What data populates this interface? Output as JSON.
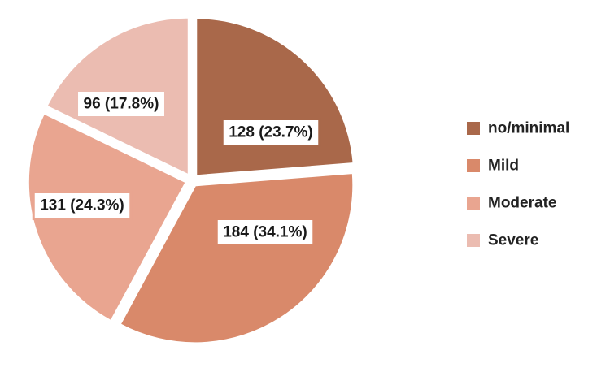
{
  "chart_data": {
    "type": "pie",
    "title": "",
    "legend_position": "right",
    "slices": [
      {
        "name": "no/minimal",
        "value": 128,
        "percent": 23.7,
        "label": "128 (23.7%)",
        "color": "#a9684a"
      },
      {
        "name": "Mild",
        "value": 184,
        "percent": 34.1,
        "label": "184 (34.1%)",
        "color": "#d9896a"
      },
      {
        "name": "Moderate",
        "value": 131,
        "percent": 24.3,
        "label": "131 (24.3%)",
        "color": "#e9a590"
      },
      {
        "name": "Severe",
        "value": 96,
        "percent": 17.8,
        "label": "96 (17.8%)",
        "color": "#ebbcb1"
      }
    ]
  }
}
